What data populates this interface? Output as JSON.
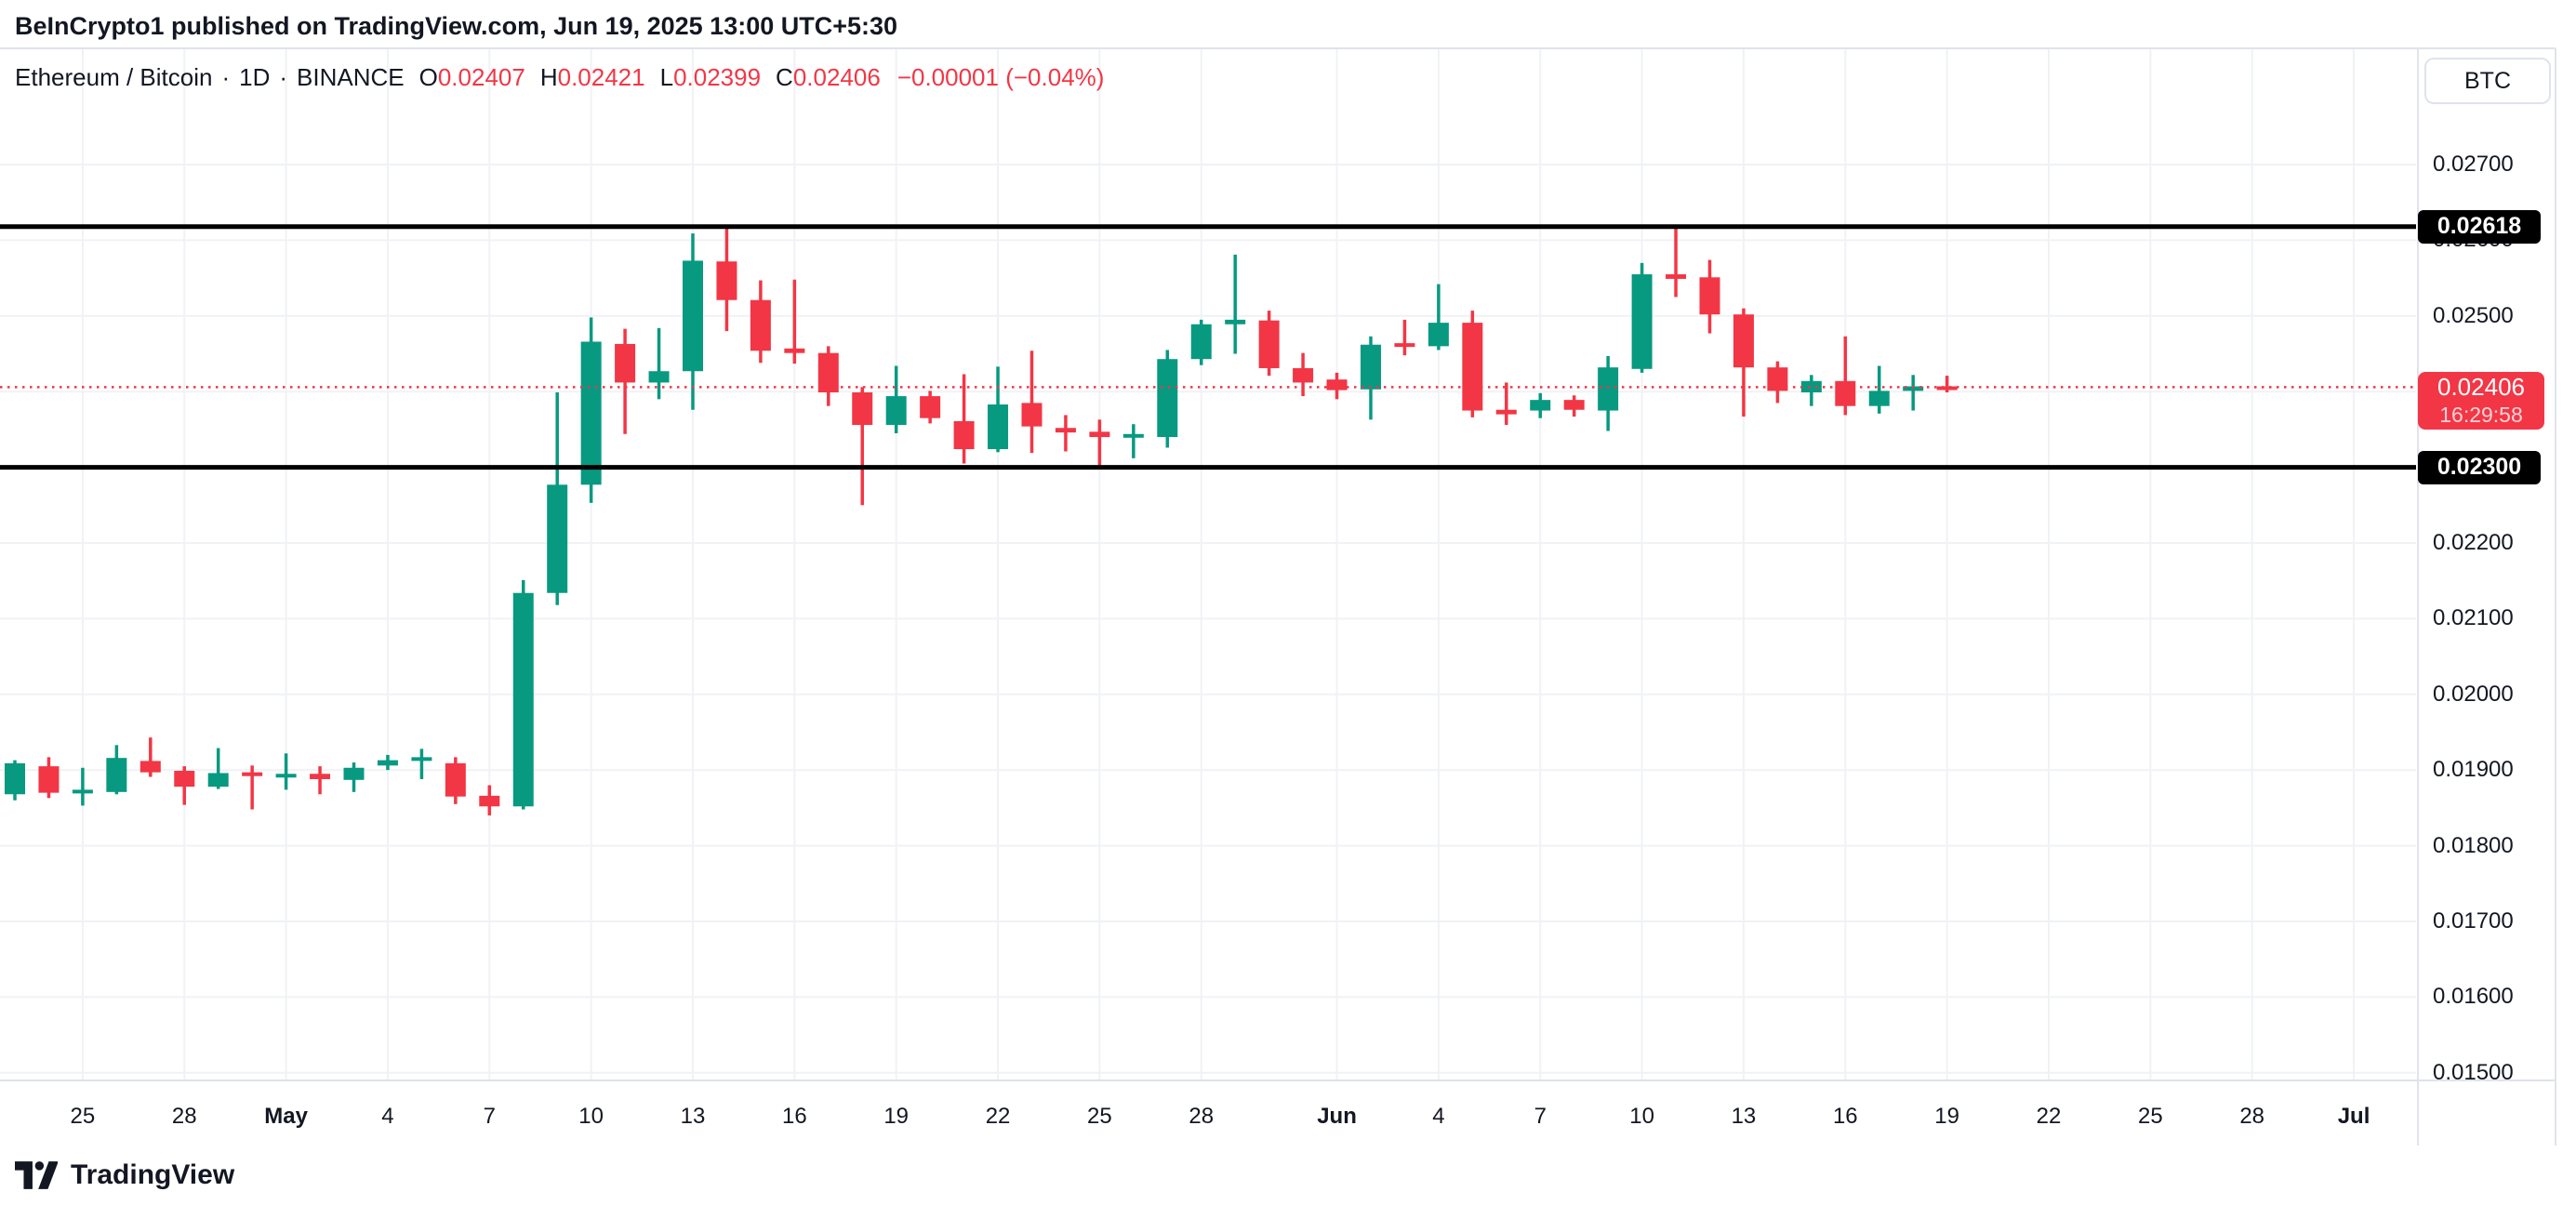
{
  "header": {
    "published_line": "BeInCrypto1 published on TradingView.com, Jun 19, 2025 13:00 UTC+5:30"
  },
  "legend": {
    "symbol": "Ethereum / Bitcoin",
    "separator": "·",
    "interval": "1D",
    "exchange": "BINANCE",
    "open_label": "O",
    "open": "0.02407",
    "high_label": "H",
    "high": "0.02421",
    "low_label": "L",
    "low": "0.02399",
    "close_label": "C",
    "close": "0.02406",
    "change": "−0.00001 (−0.04%)"
  },
  "price_axis": {
    "currency": "BTC"
  },
  "levels": {
    "resistance_label": "0.02618",
    "support_label": "0.02300",
    "last_price_label": "0.02406",
    "countdown": "16:29:58"
  },
  "footer": {
    "logo_text": "TradingView"
  },
  "colors": {
    "up": "#089981",
    "down": "#F23645",
    "level_line": "#000000",
    "last_price_line": "#F23645",
    "grid": "#F0F2F5",
    "border": "#E0E3EB",
    "label_bg_black": "#000000",
    "label_bg_red": "#F23645"
  },
  "chart_data": {
    "type": "candlestick",
    "title": "Ethereum / Bitcoin · 1D · BINANCE",
    "symbol": "ETH/BTC",
    "timeframe": "1D",
    "legend_position": "top-left",
    "grid": true,
    "y_axis": {
      "ticks": [
        0.027,
        0.026,
        0.025,
        0.024,
        0.023,
        0.022,
        0.021,
        0.02,
        0.019,
        0.018,
        0.017,
        0.016,
        0.015
      ],
      "tick_labels": [
        "0.02700",
        "0.02600",
        "0.02500",
        "0.02400",
        "0.02300",
        "0.02200",
        "0.02100",
        "0.02000",
        "0.01900",
        "0.01800",
        "0.01700",
        "0.01600",
        "0.01500"
      ]
    },
    "x_axis": {
      "ticks": [
        {
          "label": "25",
          "i": 2,
          "bold": false
        },
        {
          "label": "28",
          "i": 5,
          "bold": false
        },
        {
          "label": "May",
          "i": 8,
          "bold": true
        },
        {
          "label": "4",
          "i": 11,
          "bold": false
        },
        {
          "label": "7",
          "i": 14,
          "bold": false
        },
        {
          "label": "10",
          "i": 17,
          "bold": false
        },
        {
          "label": "13",
          "i": 20,
          "bold": false
        },
        {
          "label": "16",
          "i": 23,
          "bold": false
        },
        {
          "label": "19",
          "i": 26,
          "bold": false
        },
        {
          "label": "22",
          "i": 29,
          "bold": false
        },
        {
          "label": "25",
          "i": 32,
          "bold": false
        },
        {
          "label": "28",
          "i": 35,
          "bold": false
        },
        {
          "label": "Jun",
          "i": 39,
          "bold": true
        },
        {
          "label": "4",
          "i": 42,
          "bold": false
        },
        {
          "label": "7",
          "i": 45,
          "bold": false
        },
        {
          "label": "10",
          "i": 48,
          "bold": false
        },
        {
          "label": "13",
          "i": 51,
          "bold": false
        },
        {
          "label": "16",
          "i": 54,
          "bold": false
        },
        {
          "label": "19",
          "i": 57,
          "bold": false
        },
        {
          "label": "22",
          "i": 60,
          "bold": false
        },
        {
          "label": "25",
          "i": 63,
          "bold": false
        },
        {
          "label": "28",
          "i": 66,
          "bold": false
        },
        {
          "label": "Jul",
          "i": 69,
          "bold": true
        }
      ]
    },
    "levels": {
      "resistance": 0.02618,
      "support": 0.023,
      "last_price": 0.02406
    },
    "candles": [
      {
        "d": "Apr 23",
        "o": 0.01868,
        "h": 0.01913,
        "l": 0.0186,
        "c": 0.01909
      },
      {
        "d": "Apr 24",
        "o": 0.01905,
        "h": 0.01917,
        "l": 0.01863,
        "c": 0.0187
      },
      {
        "d": "Apr 25",
        "o": 0.0187,
        "h": 0.01903,
        "l": 0.01853,
        "c": 0.01874
      },
      {
        "d": "Apr 26",
        "o": 0.01871,
        "h": 0.01933,
        "l": 0.01868,
        "c": 0.01916
      },
      {
        "d": "Apr 27",
        "o": 0.01912,
        "h": 0.01943,
        "l": 0.01891,
        "c": 0.01897
      },
      {
        "d": "Apr 28",
        "o": 0.01899,
        "h": 0.01905,
        "l": 0.01854,
        "c": 0.01878
      },
      {
        "d": "Apr 29",
        "o": 0.01878,
        "h": 0.01929,
        "l": 0.01875,
        "c": 0.01896
      },
      {
        "d": "Apr 30",
        "o": 0.01897,
        "h": 0.01906,
        "l": 0.01848,
        "c": 0.01892
      },
      {
        "d": "May 1",
        "o": 0.01891,
        "h": 0.01922,
        "l": 0.01874,
        "c": 0.01895
      },
      {
        "d": "May 2",
        "o": 0.01895,
        "h": 0.01905,
        "l": 0.01868,
        "c": 0.01888
      },
      {
        "d": "May 3",
        "o": 0.01887,
        "h": 0.0191,
        "l": 0.01871,
        "c": 0.01903
      },
      {
        "d": "May 4",
        "o": 0.01906,
        "h": 0.0192,
        "l": 0.019,
        "c": 0.01913
      },
      {
        "d": "May 5",
        "o": 0.01913,
        "h": 0.01928,
        "l": 0.01888,
        "c": 0.01917
      },
      {
        "d": "May 6",
        "o": 0.01909,
        "h": 0.01917,
        "l": 0.01855,
        "c": 0.01865
      },
      {
        "d": "May 7",
        "o": 0.01866,
        "h": 0.0188,
        "l": 0.0184,
        "c": 0.01852
      },
      {
        "d": "May 8",
        "o": 0.01852,
        "h": 0.02151,
        "l": 0.01848,
        "c": 0.02134
      },
      {
        "d": "May 9",
        "o": 0.02134,
        "h": 0.02399,
        "l": 0.02118,
        "c": 0.02277
      },
      {
        "d": "May 10",
        "o": 0.02277,
        "h": 0.02498,
        "l": 0.02253,
        "c": 0.02466
      },
      {
        "d": "May 11",
        "o": 0.02463,
        "h": 0.02483,
        "l": 0.02344,
        "c": 0.02412
      },
      {
        "d": "May 12",
        "o": 0.02412,
        "h": 0.02484,
        "l": 0.0239,
        "c": 0.02427
      },
      {
        "d": "May 13",
        "o": 0.02427,
        "h": 0.02609,
        "l": 0.02376,
        "c": 0.02573
      },
      {
        "d": "May 14",
        "o": 0.02572,
        "h": 0.02618,
        "l": 0.0248,
        "c": 0.02521
      },
      {
        "d": "May 15",
        "o": 0.02521,
        "h": 0.02547,
        "l": 0.02438,
        "c": 0.02454
      },
      {
        "d": "May 16",
        "o": 0.02457,
        "h": 0.02548,
        "l": 0.02437,
        "c": 0.02451
      },
      {
        "d": "May 17",
        "o": 0.02451,
        "h": 0.0246,
        "l": 0.02381,
        "c": 0.02399
      },
      {
        "d": "May 18",
        "o": 0.02399,
        "h": 0.02406,
        "l": 0.0225,
        "c": 0.02356
      },
      {
        "d": "May 19",
        "o": 0.02356,
        "h": 0.02434,
        "l": 0.02345,
        "c": 0.02394
      },
      {
        "d": "May 20",
        "o": 0.02394,
        "h": 0.02401,
        "l": 0.02358,
        "c": 0.02365
      },
      {
        "d": "May 21",
        "o": 0.02361,
        "h": 0.02423,
        "l": 0.02305,
        "c": 0.02324
      },
      {
        "d": "May 22",
        "o": 0.02324,
        "h": 0.02433,
        "l": 0.0232,
        "c": 0.02383
      },
      {
        "d": "May 23",
        "o": 0.02385,
        "h": 0.02454,
        "l": 0.02319,
        "c": 0.02354
      },
      {
        "d": "May 24",
        "o": 0.02352,
        "h": 0.02369,
        "l": 0.02321,
        "c": 0.02346
      },
      {
        "d": "May 25",
        "o": 0.02347,
        "h": 0.02363,
        "l": 0.02303,
        "c": 0.0234
      },
      {
        "d": "May 26",
        "o": 0.0234,
        "h": 0.02357,
        "l": 0.02312,
        "c": 0.02344
      },
      {
        "d": "May 27",
        "o": 0.0234,
        "h": 0.02455,
        "l": 0.02326,
        "c": 0.02443
      },
      {
        "d": "May 28",
        "o": 0.02443,
        "h": 0.02495,
        "l": 0.02435,
        "c": 0.02489
      },
      {
        "d": "May 29",
        "o": 0.02489,
        "h": 0.02581,
        "l": 0.0245,
        "c": 0.02495
      },
      {
        "d": "May 30",
        "o": 0.02494,
        "h": 0.02507,
        "l": 0.02421,
        "c": 0.02431
      },
      {
        "d": "May 31",
        "o": 0.02431,
        "h": 0.02451,
        "l": 0.02394,
        "c": 0.02412
      },
      {
        "d": "Jun 1",
        "o": 0.02416,
        "h": 0.02425,
        "l": 0.0239,
        "c": 0.02402
      },
      {
        "d": "Jun 2",
        "o": 0.02403,
        "h": 0.02473,
        "l": 0.02363,
        "c": 0.02462
      },
      {
        "d": "Jun 3",
        "o": 0.02464,
        "h": 0.02495,
        "l": 0.02448,
        "c": 0.0246
      },
      {
        "d": "Jun 4",
        "o": 0.0246,
        "h": 0.02542,
        "l": 0.02455,
        "c": 0.02491
      },
      {
        "d": "Jun 5",
        "o": 0.02491,
        "h": 0.02507,
        "l": 0.02366,
        "c": 0.02375
      },
      {
        "d": "Jun 6",
        "o": 0.02376,
        "h": 0.02412,
        "l": 0.02356,
        "c": 0.0237
      },
      {
        "d": "Jun 7",
        "o": 0.02375,
        "h": 0.02398,
        "l": 0.02365,
        "c": 0.02389
      },
      {
        "d": "Jun 8",
        "o": 0.02389,
        "h": 0.02395,
        "l": 0.02367,
        "c": 0.02376
      },
      {
        "d": "Jun 9",
        "o": 0.02375,
        "h": 0.02447,
        "l": 0.02348,
        "c": 0.02432
      },
      {
        "d": "Jun 10",
        "o": 0.0243,
        "h": 0.0257,
        "l": 0.02425,
        "c": 0.02555
      },
      {
        "d": "Jun 11",
        "o": 0.02555,
        "h": 0.02618,
        "l": 0.02525,
        "c": 0.02549
      },
      {
        "d": "Jun 12",
        "o": 0.02551,
        "h": 0.02574,
        "l": 0.02477,
        "c": 0.02502
      },
      {
        "d": "Jun 13",
        "o": 0.02502,
        "h": 0.0251,
        "l": 0.02367,
        "c": 0.02432
      },
      {
        "d": "Jun 14",
        "o": 0.02432,
        "h": 0.0244,
        "l": 0.02385,
        "c": 0.02401
      },
      {
        "d": "Jun 15",
        "o": 0.02399,
        "h": 0.02422,
        "l": 0.02381,
        "c": 0.02414
      },
      {
        "d": "Jun 16",
        "o": 0.02414,
        "h": 0.02473,
        "l": 0.02369,
        "c": 0.02381
      },
      {
        "d": "Jun 17",
        "o": 0.02381,
        "h": 0.02434,
        "l": 0.02371,
        "c": 0.02401
      },
      {
        "d": "Jun 18",
        "o": 0.02401,
        "h": 0.02422,
        "l": 0.02375,
        "c": 0.02407
      },
      {
        "d": "Jun 19",
        "o": 0.02407,
        "h": 0.02421,
        "l": 0.02399,
        "c": 0.02406
      }
    ]
  }
}
